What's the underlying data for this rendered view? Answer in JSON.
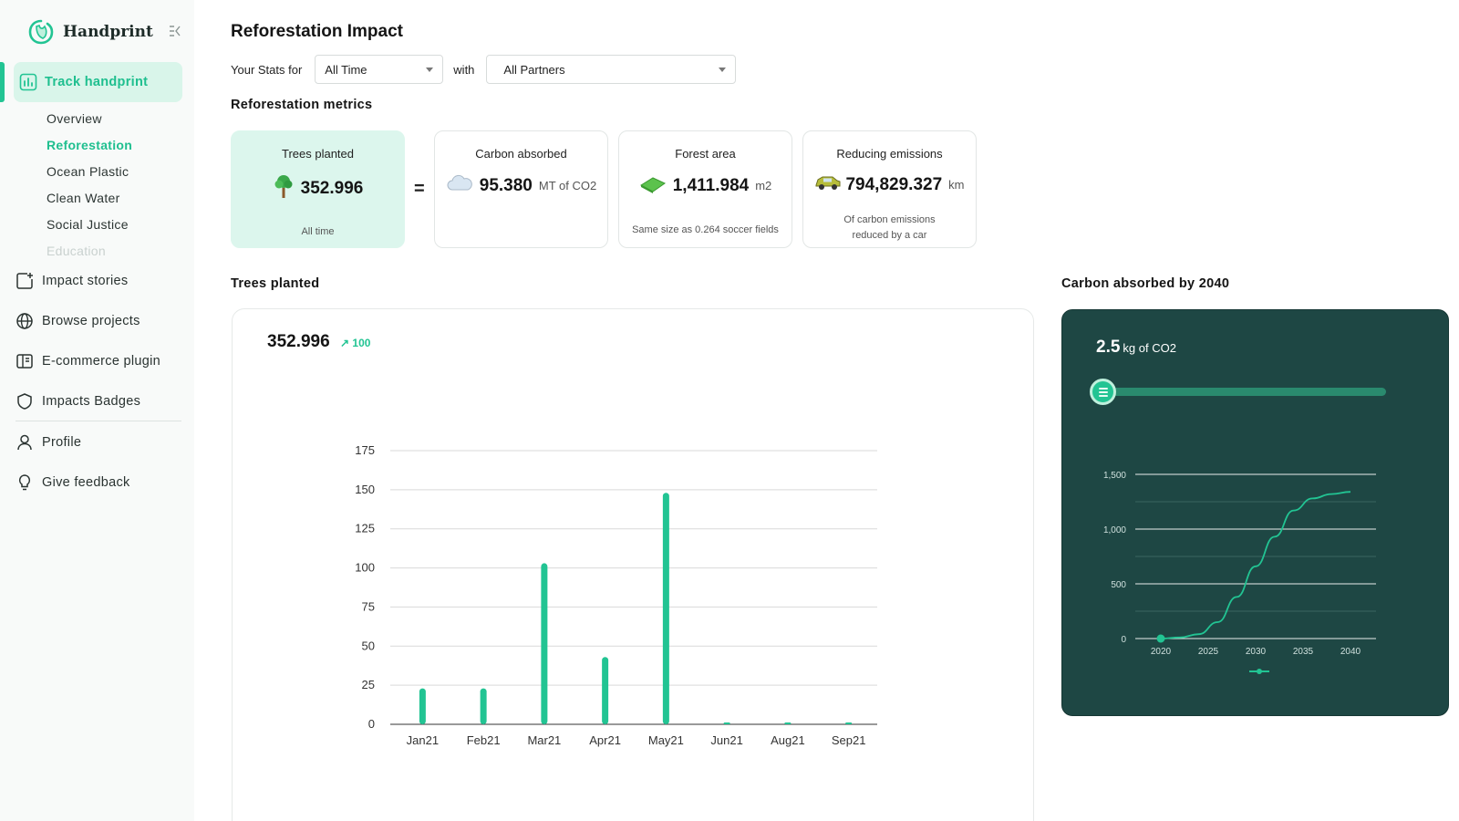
{
  "app": {
    "brand": "Handprint"
  },
  "sidebar": {
    "primary": {
      "label": "Track handprint"
    },
    "subitems": [
      {
        "label": "Overview",
        "state": "normal"
      },
      {
        "label": "Reforestation",
        "state": "active"
      },
      {
        "label": "Ocean Plastic",
        "state": "normal"
      },
      {
        "label": "Clean Water",
        "state": "normal"
      },
      {
        "label": "Social Justice",
        "state": "normal"
      },
      {
        "label": "Education",
        "state": "faded"
      }
    ],
    "items": [
      {
        "label": "Impact stories",
        "icon": "impact-stories-icon"
      },
      {
        "label": "Browse projects",
        "icon": "globe-icon"
      },
      {
        "label": "E-commerce plugin",
        "icon": "plugin-icon"
      },
      {
        "label": "Impacts Badges",
        "icon": "shield-icon"
      },
      {
        "label": "Profile",
        "icon": "user-icon"
      },
      {
        "label": "Give feedback",
        "icon": "lightbulb-icon"
      }
    ]
  },
  "header": {
    "title": "Reforestation Impact",
    "stats_label": "Your Stats for",
    "period_value": "All Time",
    "with_label": "with",
    "partner_value": "All Partners"
  },
  "metrics": {
    "section_title": "Reforestation metrics",
    "equals": "=",
    "trees": {
      "title": "Trees planted",
      "value": "352.996",
      "note": "All time",
      "icon": "tree-icon"
    },
    "carbon": {
      "title": "Carbon absorbed",
      "value": "95.380",
      "unit": "MT of CO2",
      "icon": "cloud-icon"
    },
    "forest": {
      "title": "Forest area",
      "value": "1,411.984",
      "unit": "m2",
      "note": "Same size as 0.264 soccer fields",
      "icon": "grass-icon"
    },
    "emissions": {
      "title": "Reducing emissions",
      "value": "794,829.327",
      "unit": "km",
      "note_line1": "Of carbon emissions",
      "note_line2": "reduced by a car",
      "icon": "car-icon"
    }
  },
  "trees_section": {
    "title": "Trees planted",
    "total": "352.996",
    "delta": "↗ 100"
  },
  "carbon_section": {
    "title": "Carbon absorbed by 2040",
    "value": "2.5",
    "unit": "kg of CO2",
    "slider_position": 0
  },
  "colors": {
    "accent": "#22c493",
    "dark_panel": "#1e4744",
    "highlight": "#dcf6ed"
  },
  "chart_data": [
    {
      "type": "bar",
      "categories": [
        "Jan21",
        "Feb21",
        "Mar21",
        "Apr21",
        "May21",
        "Jun21",
        "Aug21",
        "Sep21"
      ],
      "values": [
        23,
        23,
        103,
        43,
        148,
        0,
        0,
        0
      ],
      "ylim": [
        0,
        175
      ],
      "yticks": [
        0,
        25,
        50,
        75,
        100,
        125,
        150,
        175
      ],
      "grid": true
    },
    {
      "type": "line",
      "x": [
        2020,
        2022,
        2024,
        2026,
        2028,
        2030,
        2032,
        2034,
        2036,
        2038,
        2040
      ],
      "y": [
        0,
        10,
        40,
        150,
        380,
        660,
        930,
        1170,
        1280,
        1320,
        1340
      ],
      "xticks": [
        2020,
        2025,
        2030,
        2035,
        2040
      ],
      "yticks": [
        0,
        500,
        1000,
        1500
      ],
      "ytick_labels": [
        "0",
        "500",
        "1,000",
        "1,500"
      ],
      "ylim": [
        0,
        1500
      ],
      "grid": true,
      "marker": {
        "x": 2020,
        "y": 0
      }
    }
  ]
}
